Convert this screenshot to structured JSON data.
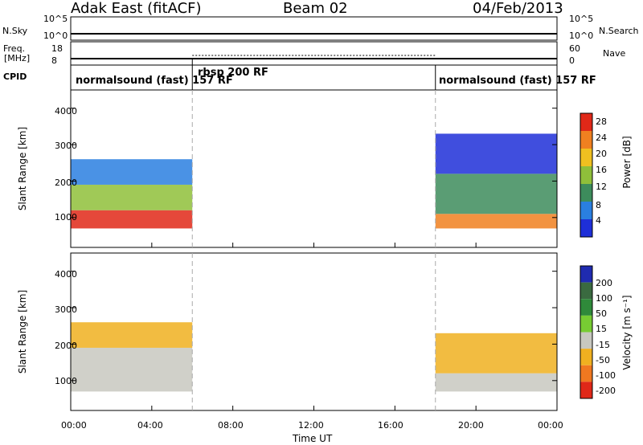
{
  "header": {
    "station": "Adak East (fitACF)",
    "beam": "Beam 02",
    "date": "04/Feb/2013"
  },
  "panel_labels": {
    "nsky": "N.Sky",
    "nsearch": "N.Search",
    "freq_line1": "Freq.",
    "freq_line2": "[MHz]",
    "nave": "Nave",
    "cpid": "CPID",
    "nsky_ticks": [
      "10^5",
      "10^0"
    ],
    "nsearch_ticks": [
      "10^5",
      "10^0"
    ],
    "freq_ticks": [
      "18",
      "8"
    ],
    "nave_ticks": [
      "60",
      "0"
    ]
  },
  "cpid_segments": [
    {
      "label": "normalsound (fast) 157 RF",
      "start_hour": 0
    },
    {
      "label": "rbsp 200 RF",
      "start_hour": 6
    },
    {
      "label": "normalsound (fast) 157 RF",
      "start_hour": 18
    }
  ],
  "axes": {
    "xlabel": "Time UT",
    "ylabel": "Slant Range [km]",
    "x_ticks": [
      "00:00",
      "04:00",
      "08:00",
      "12:00",
      "16:00",
      "20:00",
      "00:00"
    ],
    "y_ticks": [
      "1000",
      "2000",
      "3000",
      "4000"
    ]
  },
  "power_colorbar": {
    "label": "Power [dB]",
    "ticks": [
      "4",
      "8",
      "12",
      "16",
      "20",
      "24",
      "28"
    ],
    "colors": [
      "#1e2fd8",
      "#2a7fe0",
      "#3d8c5c",
      "#8fbf3a",
      "#f0c020",
      "#f08020",
      "#e02818"
    ]
  },
  "velocity_colorbar": {
    "label": "Velocity [m s⁻¹]",
    "ticks": [
      "200",
      "100",
      "50",
      "15",
      "-15",
      "-50",
      "-100",
      "-200"
    ],
    "colors": [
      "#1f2bb0",
      "#3a6a40",
      "#2f8a3a",
      "#77cc33",
      "#c8c8c0",
      "#f0b020",
      "#f07820",
      "#e02818"
    ]
  },
  "chart_data": {
    "type": "heatmap",
    "x_range_hours": [
      0,
      24
    ],
    "y_range_km": [
      180,
      4500
    ],
    "panels": [
      {
        "name": "power",
        "echo_regions": [
          {
            "x_start": 0,
            "x_end": 6,
            "y_start": 700,
            "y_end": 1200,
            "level": 28
          },
          {
            "x_start": 0,
            "x_end": 6,
            "y_start": 1200,
            "y_end": 1900,
            "level": 16
          },
          {
            "x_start": 0,
            "x_end": 6,
            "y_start": 1900,
            "y_end": 2600,
            "level": 8
          },
          {
            "x_start": 18,
            "x_end": 24,
            "y_start": 700,
            "y_end": 1100,
            "level": 24
          },
          {
            "x_start": 18,
            "x_end": 24,
            "y_start": 1100,
            "y_end": 2200,
            "level": 12
          },
          {
            "x_start": 18,
            "x_end": 24,
            "y_start": 2200,
            "y_end": 3300,
            "level": 4
          }
        ]
      },
      {
        "name": "velocity",
        "echo_regions": [
          {
            "x_start": 0,
            "x_end": 6,
            "y_start": 700,
            "y_end": 1900,
            "level": 0
          },
          {
            "x_start": 0,
            "x_end": 6,
            "y_start": 1900,
            "y_end": 2600,
            "level": -30
          },
          {
            "x_start": 18,
            "x_end": 24,
            "y_start": 700,
            "y_end": 1200,
            "level": 0
          },
          {
            "x_start": 18,
            "x_end": 24,
            "y_start": 1200,
            "y_end": 2300,
            "level": -40
          }
        ]
      }
    ]
  }
}
